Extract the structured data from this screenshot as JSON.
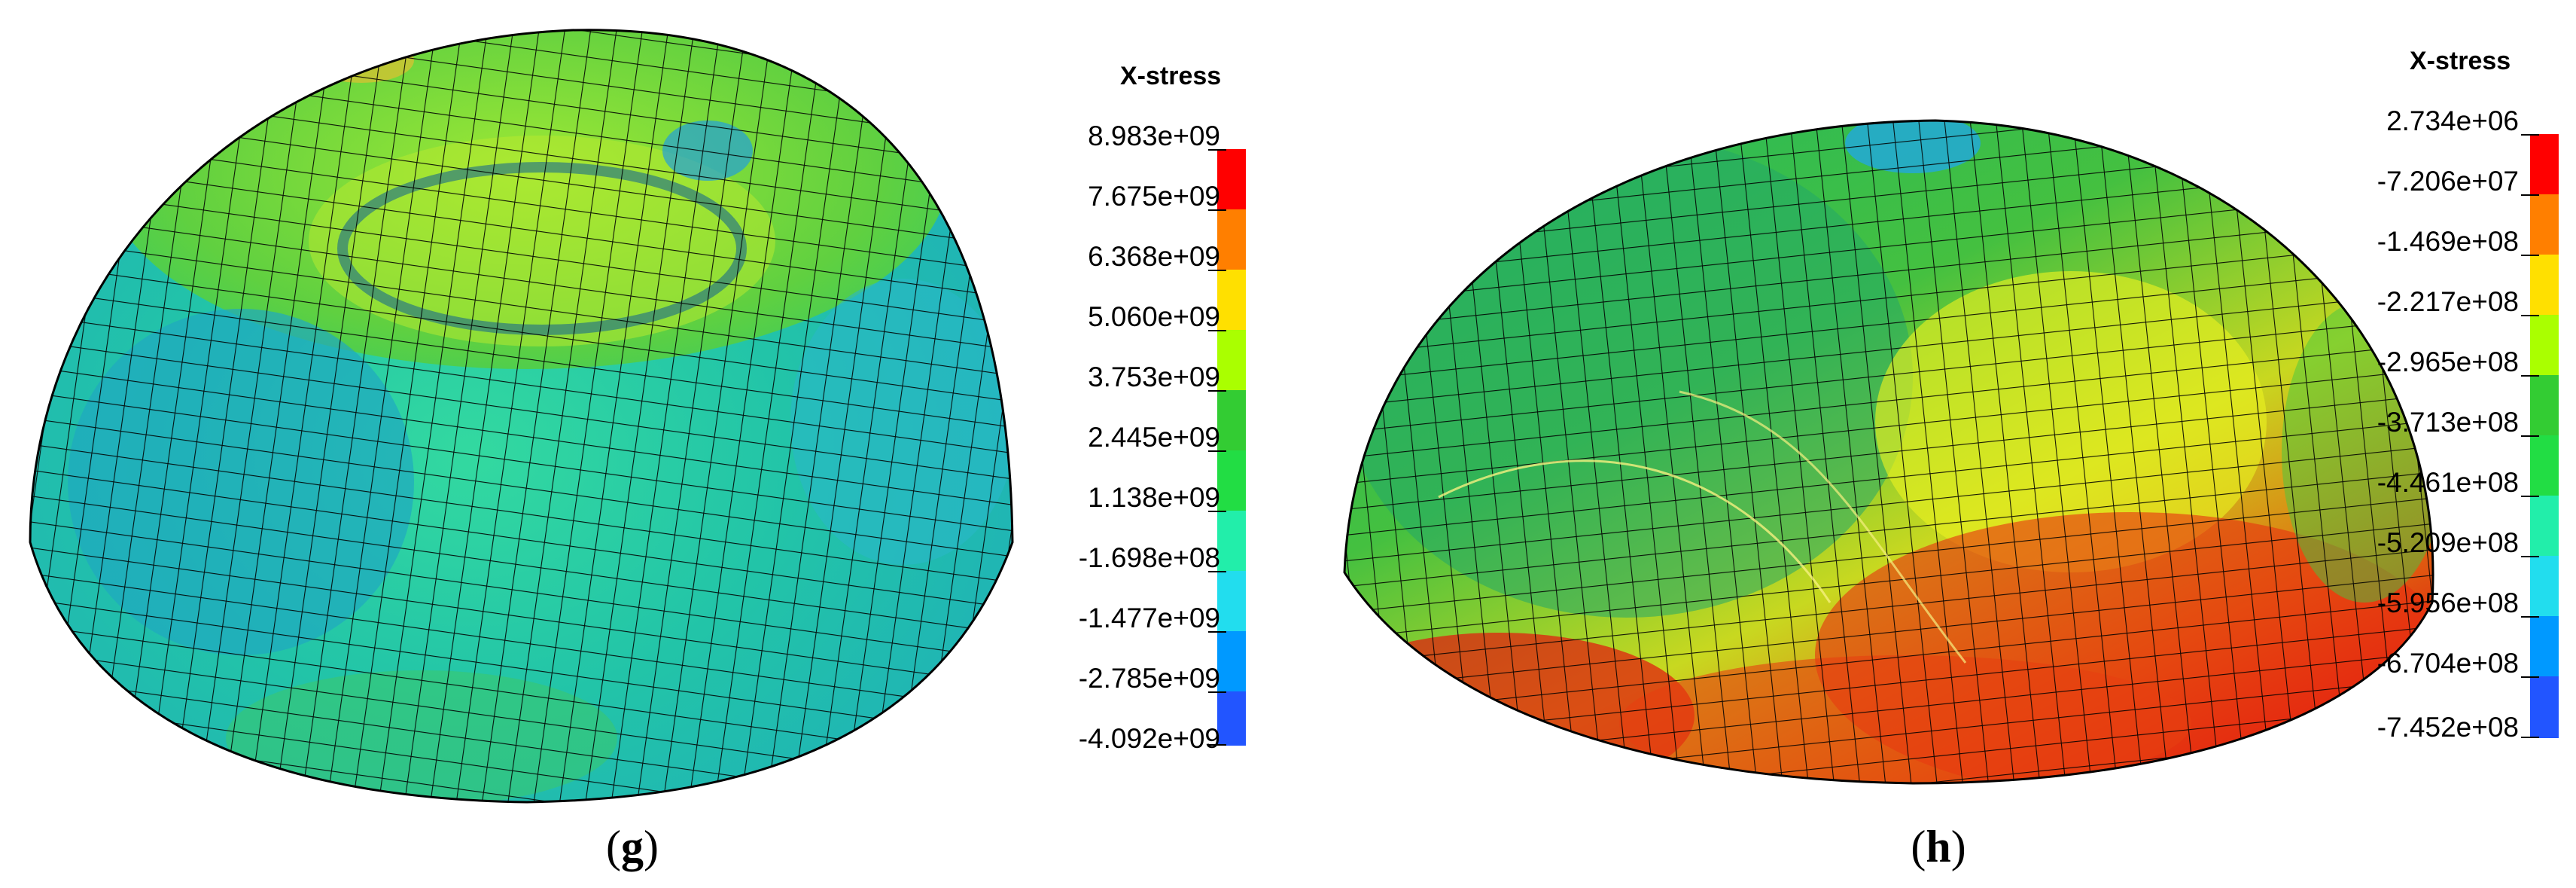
{
  "panels": [
    {
      "id": "g",
      "caption": "g",
      "legend_title": "X-stress",
      "legend_values": [
        "8.983e+09",
        "7.675e+09",
        "6.368e+09",
        "5.060e+09",
        "3.753e+09",
        "2.445e+09",
        "1.138e+09",
        "-1.698e+08",
        "-1.477e+09",
        "-2.785e+09",
        "-4.092e+09"
      ],
      "legend_colors": [
        "#ff0000",
        "#ff7f00",
        "#ffe000",
        "#aaff00",
        "#33cc33",
        "#22dd44",
        "#22eeaa",
        "#22ddee",
        "#0099ff",
        "#2255ff",
        "#0000ff"
      ]
    },
    {
      "id": "h",
      "caption": "h",
      "legend_title": "X-stress",
      "legend_values": [
        "2.734e+06",
        "-7.206e+07",
        "-1.469e+08",
        "-2.217e+08",
        "-2.965e+08",
        "-3.713e+08",
        "-4.461e+08",
        "-5.209e+08",
        "-5.956e+08",
        "-6.704e+08",
        "-7.452e+08"
      ],
      "legend_colors": [
        "#ff0000",
        "#ff7f00",
        "#ffe000",
        "#aaff00",
        "#33cc33",
        "#22dd44",
        "#22eeaa",
        "#22ddee",
        "#0099ff",
        "#2255ff",
        "#0000ff"
      ]
    }
  ]
}
